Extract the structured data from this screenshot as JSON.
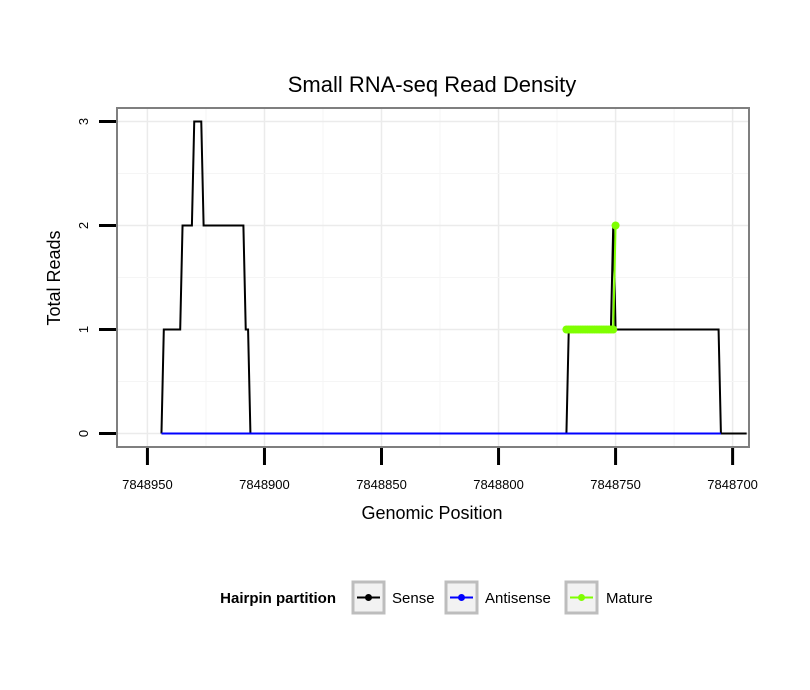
{
  "chart_data": {
    "type": "line",
    "title": "Small RNA-seq Read Density",
    "xlabel": "Genomic Position",
    "ylabel": "Total Reads",
    "x_reversed": true,
    "xlim": [
      7848963,
      7848693
    ],
    "ylim": [
      -0.13,
      3.13
    ],
    "x_ticks": [
      7848950,
      7848900,
      7848850,
      7848800,
      7848750,
      7848700
    ],
    "x_tick_labels": [
      "7848950",
      "7848900",
      "7848850",
      "7848800",
      "7848750",
      "7848700"
    ],
    "y_ticks": [
      0,
      1,
      2,
      3
    ],
    "y_tick_labels": [
      "0",
      "1",
      "2",
      "3"
    ],
    "grid": true,
    "legend": {
      "title": "Hairpin partition",
      "position": "bottom",
      "entries": [
        {
          "label": "Sense",
          "color": "#000000"
        },
        {
          "label": "Antisense",
          "color": "#0000ff"
        },
        {
          "label": "Mature",
          "color": "#7fff00"
        }
      ]
    },
    "series": [
      {
        "name": "Sense",
        "color": "#000000",
        "x": [
          7848944,
          7848943,
          7848936,
          7848935,
          7848931,
          7848930,
          7848927,
          7848926,
          7848922,
          7848921,
          7848909,
          7848908,
          7848907,
          7848906,
          7848905,
          7848904,
          7848771,
          7848770,
          7848752,
          7848751,
          7848750,
          7848749,
          7848706,
          7848705,
          7848694
        ],
        "y": [
          0,
          1,
          1,
          2,
          2,
          3,
          3,
          2,
          2,
          2,
          2,
          1,
          1,
          0,
          0,
          0,
          0,
          1,
          1,
          2,
          1,
          1,
          1,
          0,
          0
        ]
      },
      {
        "name": "Antisense",
        "color": "#0000ff",
        "x": [
          7848944,
          7848906,
          7848771,
          7848705
        ],
        "y": [
          0,
          0,
          0,
          0
        ]
      },
      {
        "name": "Mature",
        "color": "#7fff00",
        "x": [
          7848771,
          7848770,
          7848769,
          7848768,
          7848767,
          7848766,
          7848765,
          7848764,
          7848763,
          7848762,
          7848761,
          7848760,
          7848759,
          7848758,
          7848757,
          7848756,
          7848755,
          7848754,
          7848753,
          7848752,
          7848751,
          7848750
        ],
        "y": [
          1,
          1,
          1,
          1,
          1,
          1,
          1,
          1,
          1,
          1,
          1,
          1,
          1,
          1,
          1,
          1,
          1,
          1,
          1,
          1,
          1,
          2
        ]
      }
    ]
  }
}
